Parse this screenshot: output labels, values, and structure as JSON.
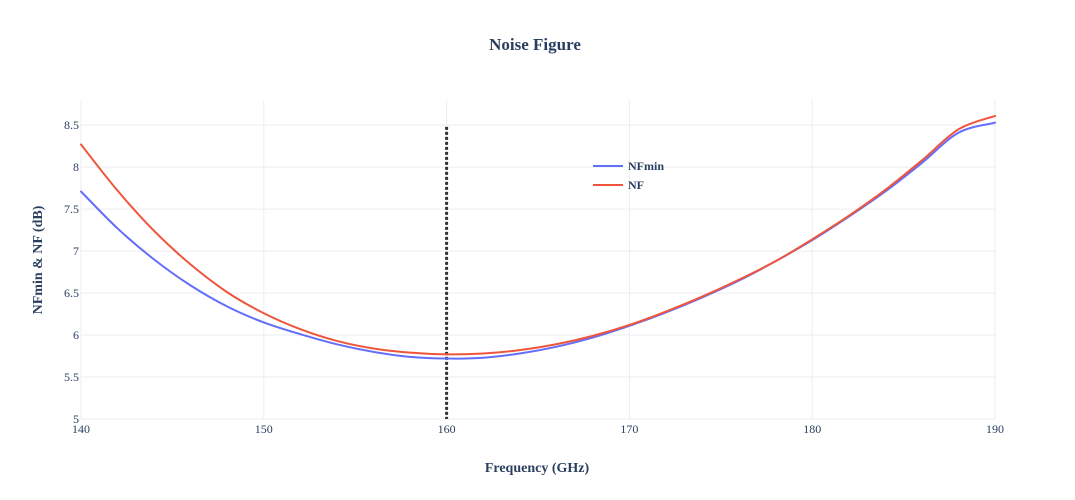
{
  "chart_data": {
    "type": "line",
    "title": "Noise Figure",
    "xlabel": "Frequency (GHz)",
    "ylabel": "NFmin & NF (dB)",
    "xlim": [
      140,
      190
    ],
    "ylim": [
      5,
      8.8
    ],
    "xticks": [
      140,
      150,
      160,
      170,
      180,
      190
    ],
    "xtick_labels": [
      "140",
      "150",
      "160",
      "170",
      "180",
      "190"
    ],
    "yticks": [
      5,
      5.5,
      6,
      6.5,
      7,
      7.5,
      8,
      8.5
    ],
    "ytick_labels": [
      "5",
      "5.5",
      "6",
      "6.5",
      "7",
      "7.5",
      "8",
      "8.5"
    ],
    "grid": true,
    "legend_position": "top-right",
    "vline": {
      "x": 160,
      "y_range": [
        5,
        8.48
      ],
      "style": "dotted",
      "color": "#333333"
    },
    "series": [
      {
        "name": "NFmin",
        "color": "#636efa",
        "x": [
          140,
          142,
          144,
          146,
          148,
          150,
          152,
          154,
          156,
          158,
          160,
          162,
          164,
          166,
          168,
          170,
          172,
          174,
          176,
          178,
          180,
          182,
          184,
          186,
          188,
          190
        ],
        "y": [
          7.71,
          7.27,
          6.9,
          6.59,
          6.34,
          6.15,
          6.01,
          5.89,
          5.8,
          5.74,
          5.72,
          5.73,
          5.78,
          5.86,
          5.97,
          6.11,
          6.27,
          6.45,
          6.65,
          6.88,
          7.13,
          7.41,
          7.71,
          8.05,
          8.41,
          8.53
        ]
      },
      {
        "name": "NF",
        "color": "#ef553b",
        "x": [
          140,
          142,
          144,
          146,
          148,
          150,
          152,
          154,
          156,
          158,
          160,
          162,
          164,
          166,
          168,
          170,
          172,
          174,
          176,
          178,
          180,
          182,
          184,
          186,
          188,
          190
        ],
        "y": [
          8.27,
          7.72,
          7.24,
          6.84,
          6.51,
          6.26,
          6.07,
          5.93,
          5.84,
          5.79,
          5.77,
          5.78,
          5.82,
          5.89,
          5.99,
          6.12,
          6.28,
          6.46,
          6.66,
          6.88,
          7.14,
          7.42,
          7.73,
          8.08,
          8.45,
          8.61
        ]
      }
    ]
  }
}
